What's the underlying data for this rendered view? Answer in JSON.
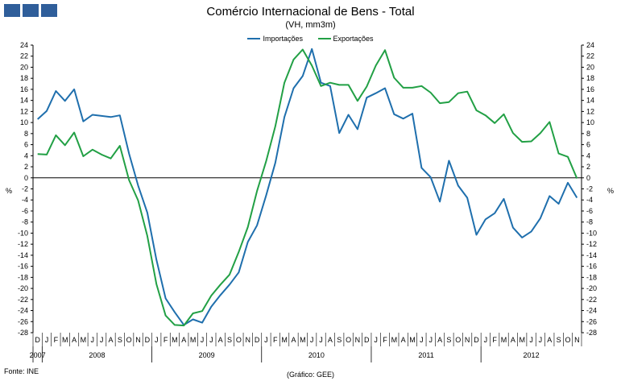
{
  "title": "Comércio Internacional de Bens - Total",
  "subtitle": "(VH, mm3m)",
  "y_unit": "%",
  "source": "Fonte: INE",
  "credit": "(Gráfico: GEE)",
  "colors": {
    "series1": "#1f6fad",
    "series2": "#22a045",
    "grid": "#000000",
    "logo": "#2f5e9a"
  },
  "chart_data": {
    "type": "line",
    "ylim": [
      -28,
      24
    ],
    "ytick_step": 2,
    "y_axis_both_sides": true,
    "grid": false,
    "legend_position": "top-center",
    "month_labels": [
      "D",
      "J",
      "F",
      "M",
      "A",
      "M",
      "J",
      "J",
      "A",
      "S",
      "O",
      "N",
      "D",
      "J",
      "F",
      "M",
      "A",
      "M",
      "J",
      "J",
      "A",
      "S",
      "O",
      "N",
      "D",
      "J",
      "F",
      "M",
      "A",
      "M",
      "J",
      "J",
      "A",
      "S",
      "O",
      "N",
      "D",
      "J",
      "F",
      "M",
      "A",
      "M",
      "J",
      "J",
      "A",
      "S",
      "O",
      "N",
      "D",
      "J",
      "F",
      "M",
      "A",
      "M",
      "J",
      "J",
      "A",
      "S",
      "O",
      "N"
    ],
    "year_labels": [
      {
        "label": "2007",
        "start": 0,
        "end": 0
      },
      {
        "label": "2008",
        "start": 1,
        "end": 12
      },
      {
        "label": "2009",
        "start": 13,
        "end": 24
      },
      {
        "label": "2010",
        "start": 25,
        "end": 36
      },
      {
        "label": "2011",
        "start": 37,
        "end": 48
      },
      {
        "label": "2012",
        "start": 49,
        "end": 59
      }
    ],
    "series": [
      {
        "name": "Importações",
        "values": [
          10.6,
          12.1,
          15.7,
          13.9,
          16.0,
          10.2,
          11.4,
          11.2,
          11.0,
          11.3,
          4.4,
          -1.4,
          -6.3,
          -14.8,
          -21.8,
          -24.3,
          -26.6,
          -25.6,
          -26.2,
          -23.3,
          -21.2,
          -19.3,
          -17.1,
          -11.6,
          -8.6,
          -3.2,
          2.7,
          11.0,
          16.2,
          18.4,
          23.3,
          17.2,
          16.6,
          8.1,
          11.4,
          8.8,
          14.5,
          15.3,
          16.2,
          11.5,
          10.7,
          11.6,
          1.8,
          0.1,
          -4.3,
          3.1,
          -1.4,
          -3.6,
          -10.3,
          -7.5,
          -6.4,
          -3.8,
          -9.0,
          -10.8,
          -9.7,
          -7.3,
          -3.3,
          -4.7,
          -0.9,
          -3.6
        ]
      },
      {
        "name": "Exportações",
        "values": [
          4.3,
          4.2,
          7.7,
          5.9,
          8.2,
          3.9,
          5.1,
          4.2,
          3.5,
          5.8,
          -0.4,
          -4.1,
          -10.5,
          -19.2,
          -24.9,
          -26.6,
          -26.7,
          -24.5,
          -24.1,
          -21.3,
          -19.3,
          -17.5,
          -13.4,
          -8.9,
          -2.4,
          3.0,
          9.3,
          17.2,
          21.4,
          23.2,
          20.3,
          16.6,
          17.2,
          16.8,
          16.8,
          13.9,
          16.5,
          20.3,
          23.1,
          18.1,
          16.3,
          16.3,
          16.6,
          15.4,
          13.5,
          13.7,
          15.3,
          15.6,
          12.2,
          11.3,
          9.9,
          11.5,
          8.1,
          6.5,
          6.6,
          8.1,
          10.1,
          4.4,
          3.8,
          -0.1
        ]
      }
    ]
  }
}
